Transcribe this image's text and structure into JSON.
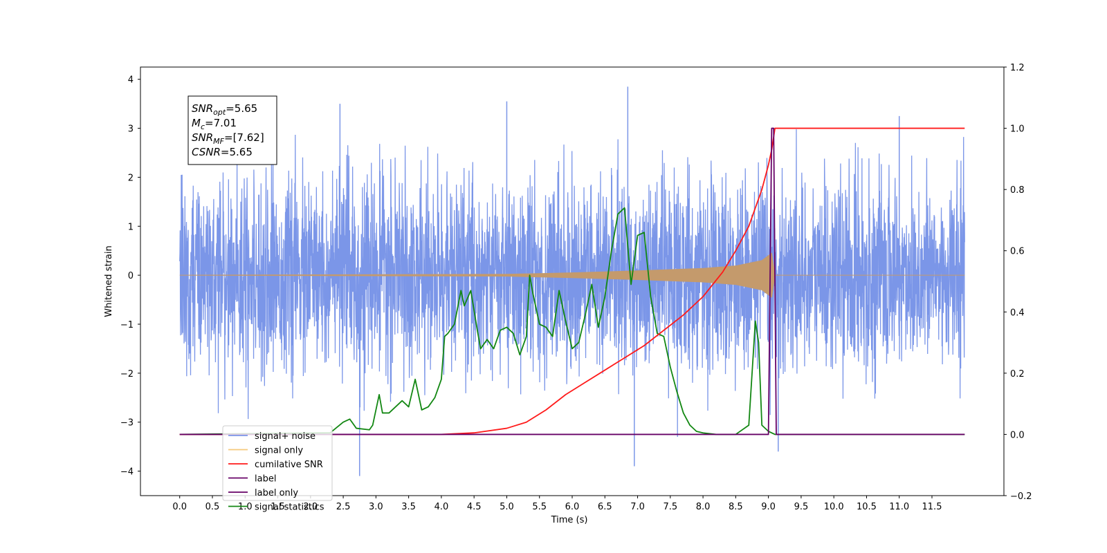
{
  "chart_data": {
    "type": "line",
    "xlabel": "Time (s)",
    "ylabel": "Whitened strain",
    "xlim": [
      -0.6,
      12.6
    ],
    "ylim_left": [
      -4.5,
      4.25
    ],
    "ylim_right": [
      -0.2,
      1.2
    ],
    "x_ticks": [
      "0.0",
      "0.5",
      "1.0",
      "1.5",
      "2.0",
      "2.5",
      "3.0",
      "3.5",
      "4.0",
      "4.5",
      "5.0",
      "5.5",
      "6.0",
      "6.5",
      "7.0",
      "7.5",
      "8.0",
      "8.5",
      "9.0",
      "9.5",
      "10.0",
      "10.5",
      "11.0",
      "11.5"
    ],
    "y_ticks_left": [
      "4",
      "3",
      "2",
      "1",
      "0",
      "−1",
      "−2",
      "−3",
      "−4"
    ],
    "y_ticks_right": [
      "1.2",
      "1.0",
      "0.8",
      "0.6",
      "0.4",
      "0.2",
      "0.0",
      "−0.2"
    ],
    "annotation": {
      "lines": [
        {
          "base": "SNR",
          "sub": "opt",
          "value": "=5.65"
        },
        {
          "base": "M",
          "sub": "c",
          "value": "=7.01"
        },
        {
          "base": "SNR",
          "sub": "MF",
          "value": "=[7.62]"
        },
        {
          "base": "CSNR",
          "sub": "",
          "value": "=5.65"
        }
      ]
    },
    "legend_position": "lower-left",
    "legend": [
      {
        "label": "signal+ noise",
        "color": "#7b96e8"
      },
      {
        "label": "signal only",
        "color": "#f5c97a"
      },
      {
        "label": "cumilative SNR",
        "color": "#ff1a1a"
      },
      {
        "label": "label",
        "color": "#660066"
      },
      {
        "label": "label only",
        "color": "#660066"
      },
      {
        "label": "signal statistics",
        "color": "#128712"
      }
    ],
    "series": [
      {
        "name": "signal+ noise",
        "axis": "left",
        "color": "#7b96e8",
        "duration": [
          0,
          12.0
        ],
        "envelope_typical": [
          -2.0,
          2.0
        ],
        "notable_spikes": [
          [
            6.85,
            3.85
          ],
          [
            6.95,
            -3.9
          ],
          [
            2.75,
            -4.1
          ],
          [
            9.15,
            -3.6
          ],
          [
            5.0,
            3.55
          ],
          [
            2.45,
            3.5
          ],
          [
            11.0,
            3.25
          ]
        ]
      },
      {
        "name": "signal only",
        "axis": "left",
        "color": "#c49a6c",
        "envelope_x": [
          0,
          5.0,
          6.0,
          7.0,
          8.0,
          8.5,
          8.9,
          9.05,
          9.1,
          12.0
        ],
        "envelope_amp": [
          0.0,
          0.02,
          0.05,
          0.09,
          0.14,
          0.19,
          0.3,
          0.45,
          0.0,
          0.0
        ]
      },
      {
        "name": "cumilative SNR",
        "axis": "right",
        "color": "#ff1a1a",
        "x": [
          0,
          4.0,
          4.5,
          5.0,
          5.3,
          5.6,
          5.9,
          6.2,
          6.5,
          6.8,
          7.1,
          7.4,
          7.7,
          8.0,
          8.3,
          8.5,
          8.7,
          8.9,
          9.0,
          9.05,
          9.1,
          12.0
        ],
        "y": [
          0.0,
          0.0,
          0.005,
          0.02,
          0.04,
          0.08,
          0.13,
          0.17,
          0.21,
          0.25,
          0.29,
          0.34,
          0.39,
          0.45,
          0.53,
          0.6,
          0.68,
          0.8,
          0.88,
          0.93,
          1.0,
          1.0
        ]
      },
      {
        "name": "label",
        "axis": "right",
        "color": "#660066",
        "x": [
          0,
          9.0,
          9.05,
          9.08,
          9.12,
          12.0
        ],
        "y": [
          0.0,
          0.0,
          1.0,
          1.0,
          0.0,
          0.0
        ]
      },
      {
        "name": "signal statistics",
        "axis": "right",
        "color": "#128712",
        "x": [
          0,
          2.3,
          2.5,
          2.6,
          2.7,
          2.9,
          2.95,
          3.05,
          3.1,
          3.2,
          3.3,
          3.4,
          3.5,
          3.6,
          3.7,
          3.8,
          3.9,
          4.0,
          4.05,
          4.1,
          4.2,
          4.3,
          4.35,
          4.45,
          4.55,
          4.6,
          4.7,
          4.8,
          4.9,
          5.0,
          5.1,
          5.2,
          5.3,
          5.35,
          5.4,
          5.5,
          5.6,
          5.7,
          5.8,
          5.9,
          6.0,
          6.1,
          6.2,
          6.3,
          6.4,
          6.5,
          6.6,
          6.7,
          6.8,
          6.9,
          7.0,
          7.1,
          7.2,
          7.3,
          7.4,
          7.5,
          7.6,
          7.7,
          7.8,
          7.9,
          8.0,
          8.2,
          8.5,
          8.7,
          8.8,
          8.85,
          8.9,
          9.0,
          9.1,
          9.2,
          9.5,
          12.0
        ],
        "y": [
          0.0,
          0.005,
          0.04,
          0.05,
          0.02,
          0.015,
          0.03,
          0.13,
          0.07,
          0.07,
          0.09,
          0.11,
          0.09,
          0.18,
          0.08,
          0.09,
          0.12,
          0.18,
          0.32,
          0.33,
          0.36,
          0.47,
          0.42,
          0.47,
          0.34,
          0.28,
          0.31,
          0.28,
          0.34,
          0.35,
          0.33,
          0.26,
          0.32,
          0.52,
          0.46,
          0.36,
          0.35,
          0.32,
          0.47,
          0.37,
          0.28,
          0.3,
          0.39,
          0.49,
          0.35,
          0.45,
          0.6,
          0.72,
          0.74,
          0.49,
          0.65,
          0.66,
          0.45,
          0.33,
          0.32,
          0.22,
          0.14,
          0.07,
          0.03,
          0.01,
          0.005,
          0.0,
          0.0,
          0.03,
          0.37,
          0.3,
          0.03,
          0.01,
          0.0,
          0.0,
          0.0,
          0.0
        ]
      }
    ]
  }
}
